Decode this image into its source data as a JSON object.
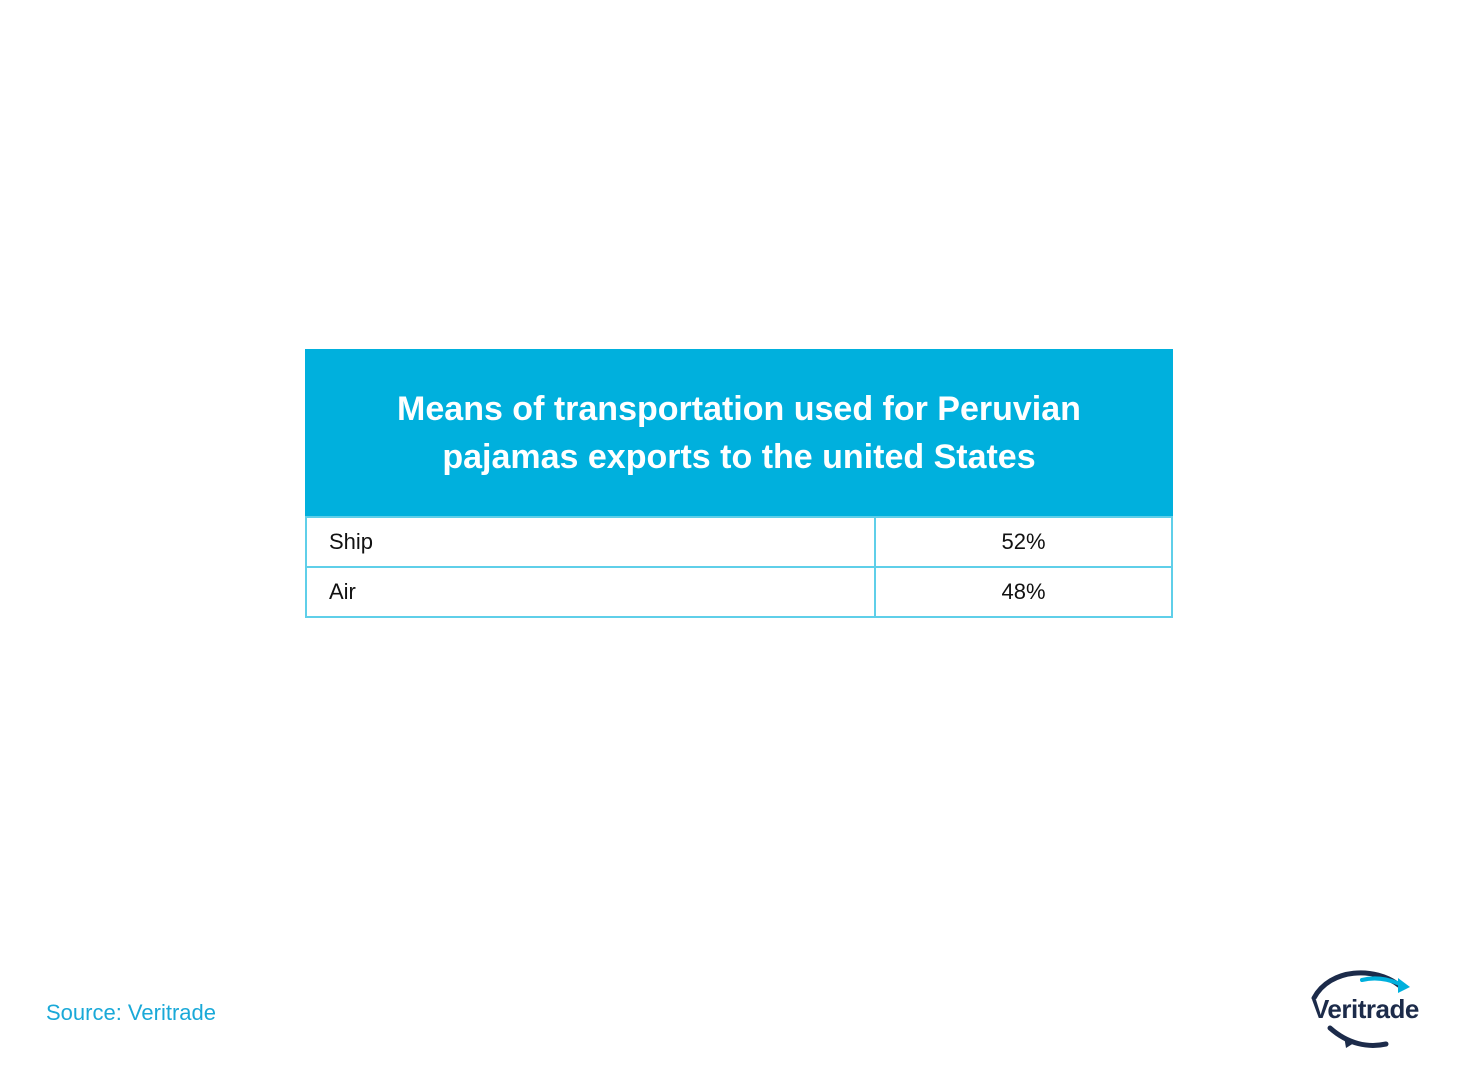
{
  "chart_data": {
    "type": "table",
    "title": "Means of transportation used for Peruvian pajamas exports to the united States",
    "rows": [
      {
        "category": "Ship",
        "value": "52%"
      },
      {
        "category": "Air",
        "value": "48%"
      }
    ]
  },
  "footer": {
    "source": "Source: Veritrade"
  },
  "logo": {
    "text": "Veritrade",
    "icon": "arc-arrow-logo-icon",
    "colors": {
      "dark": "#1c2b4a",
      "accent": "#00b0dd"
    }
  },
  "colors": {
    "header_bg": "#00b0dd",
    "border": "#5fcfe9",
    "source_text": "#1aa9d8"
  }
}
